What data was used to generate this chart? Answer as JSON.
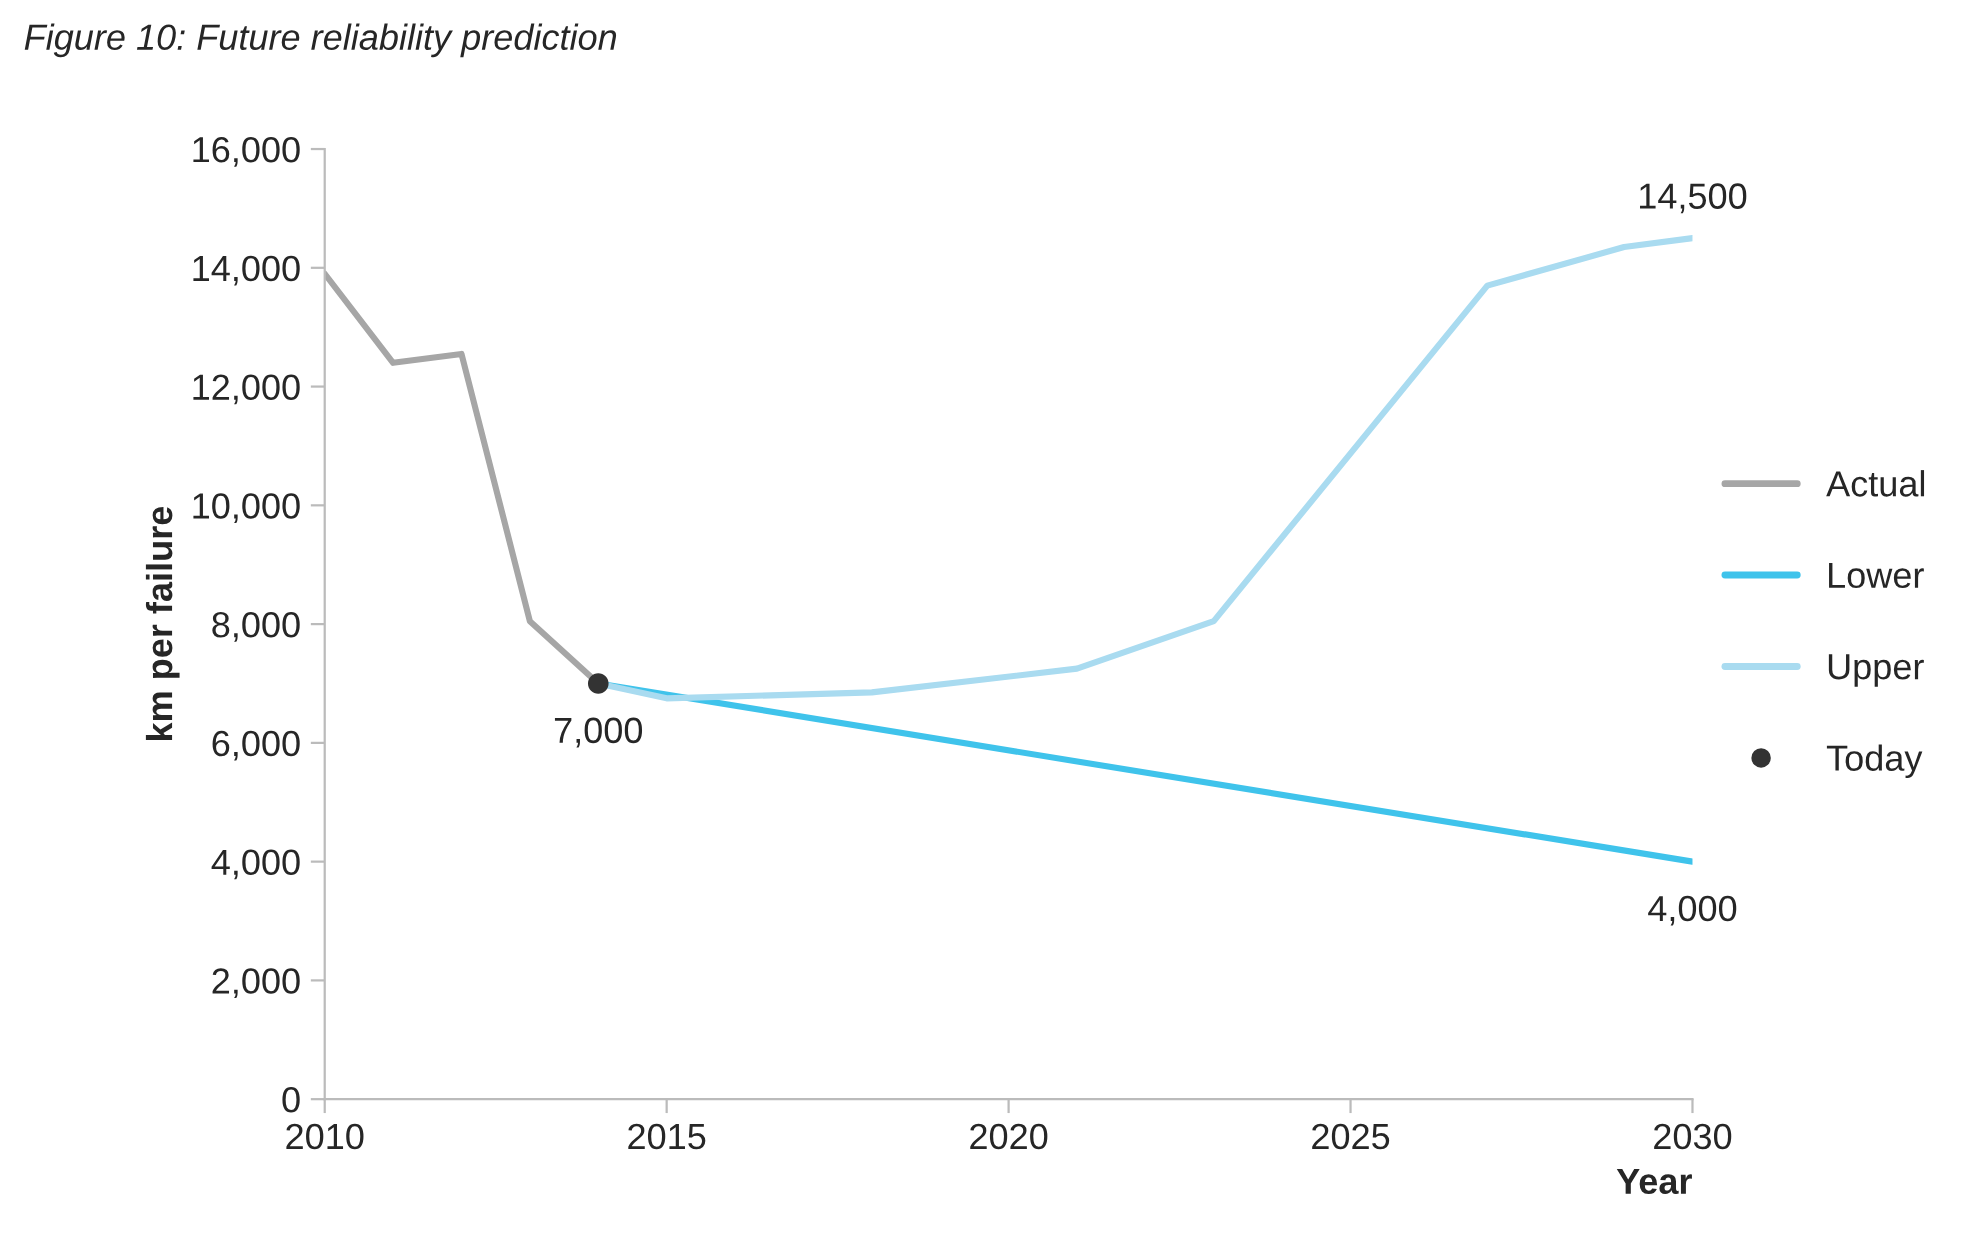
{
  "chart_data": {
    "type": "line",
    "title": "Figure 10: Future reliability prediction",
    "xlabel": "Year",
    "ylabel": "km per failure",
    "series": [
      {
        "name": "Actual",
        "color": "#a6a6a6",
        "x": [
          2010,
          2011,
          2012,
          2013,
          2014
        ],
        "values": [
          13900,
          12400,
          12550,
          8050,
          7000
        ]
      },
      {
        "name": "Lower",
        "color": "#3fc3eb",
        "x": [
          2014,
          2030
        ],
        "values": [
          7000,
          4000
        ],
        "value_labels": [
          null,
          "4,000"
        ]
      },
      {
        "name": "Upper",
        "color": "#a9dbf0",
        "x": [
          2014,
          2015,
          2018,
          2021,
          2023,
          2027,
          2029,
          2030
        ],
        "values": [
          7000,
          6750,
          6850,
          7250,
          8050,
          13700,
          14350,
          14500
        ],
        "value_labels": [
          null,
          null,
          null,
          null,
          null,
          null,
          null,
          "14,500"
        ]
      },
      {
        "name": "Today",
        "type": "scatter",
        "color": "#333333",
        "x": [
          2014
        ],
        "values": [
          7000
        ],
        "value_labels": [
          "7,000"
        ]
      }
    ],
    "xlim": [
      2010,
      2030
    ],
    "xticks": [
      2010,
      2015,
      2020,
      2025,
      2030
    ],
    "ylim": [
      0,
      16000
    ],
    "yticks": [
      {
        "value": 0,
        "label": "0"
      },
      {
        "value": 2000,
        "label": "2,000"
      },
      {
        "value": 4000,
        "label": "4,000"
      },
      {
        "value": 6000,
        "label": "6,000"
      },
      {
        "value": 8000,
        "label": "8,000"
      },
      {
        "value": 10000,
        "label": "10,000"
      },
      {
        "value": 12000,
        "label": "12,000"
      },
      {
        "value": 14000,
        "label": "14,000"
      },
      {
        "value": 16000,
        "label": "16,000"
      }
    ],
    "grid": false,
    "legend": "right"
  }
}
